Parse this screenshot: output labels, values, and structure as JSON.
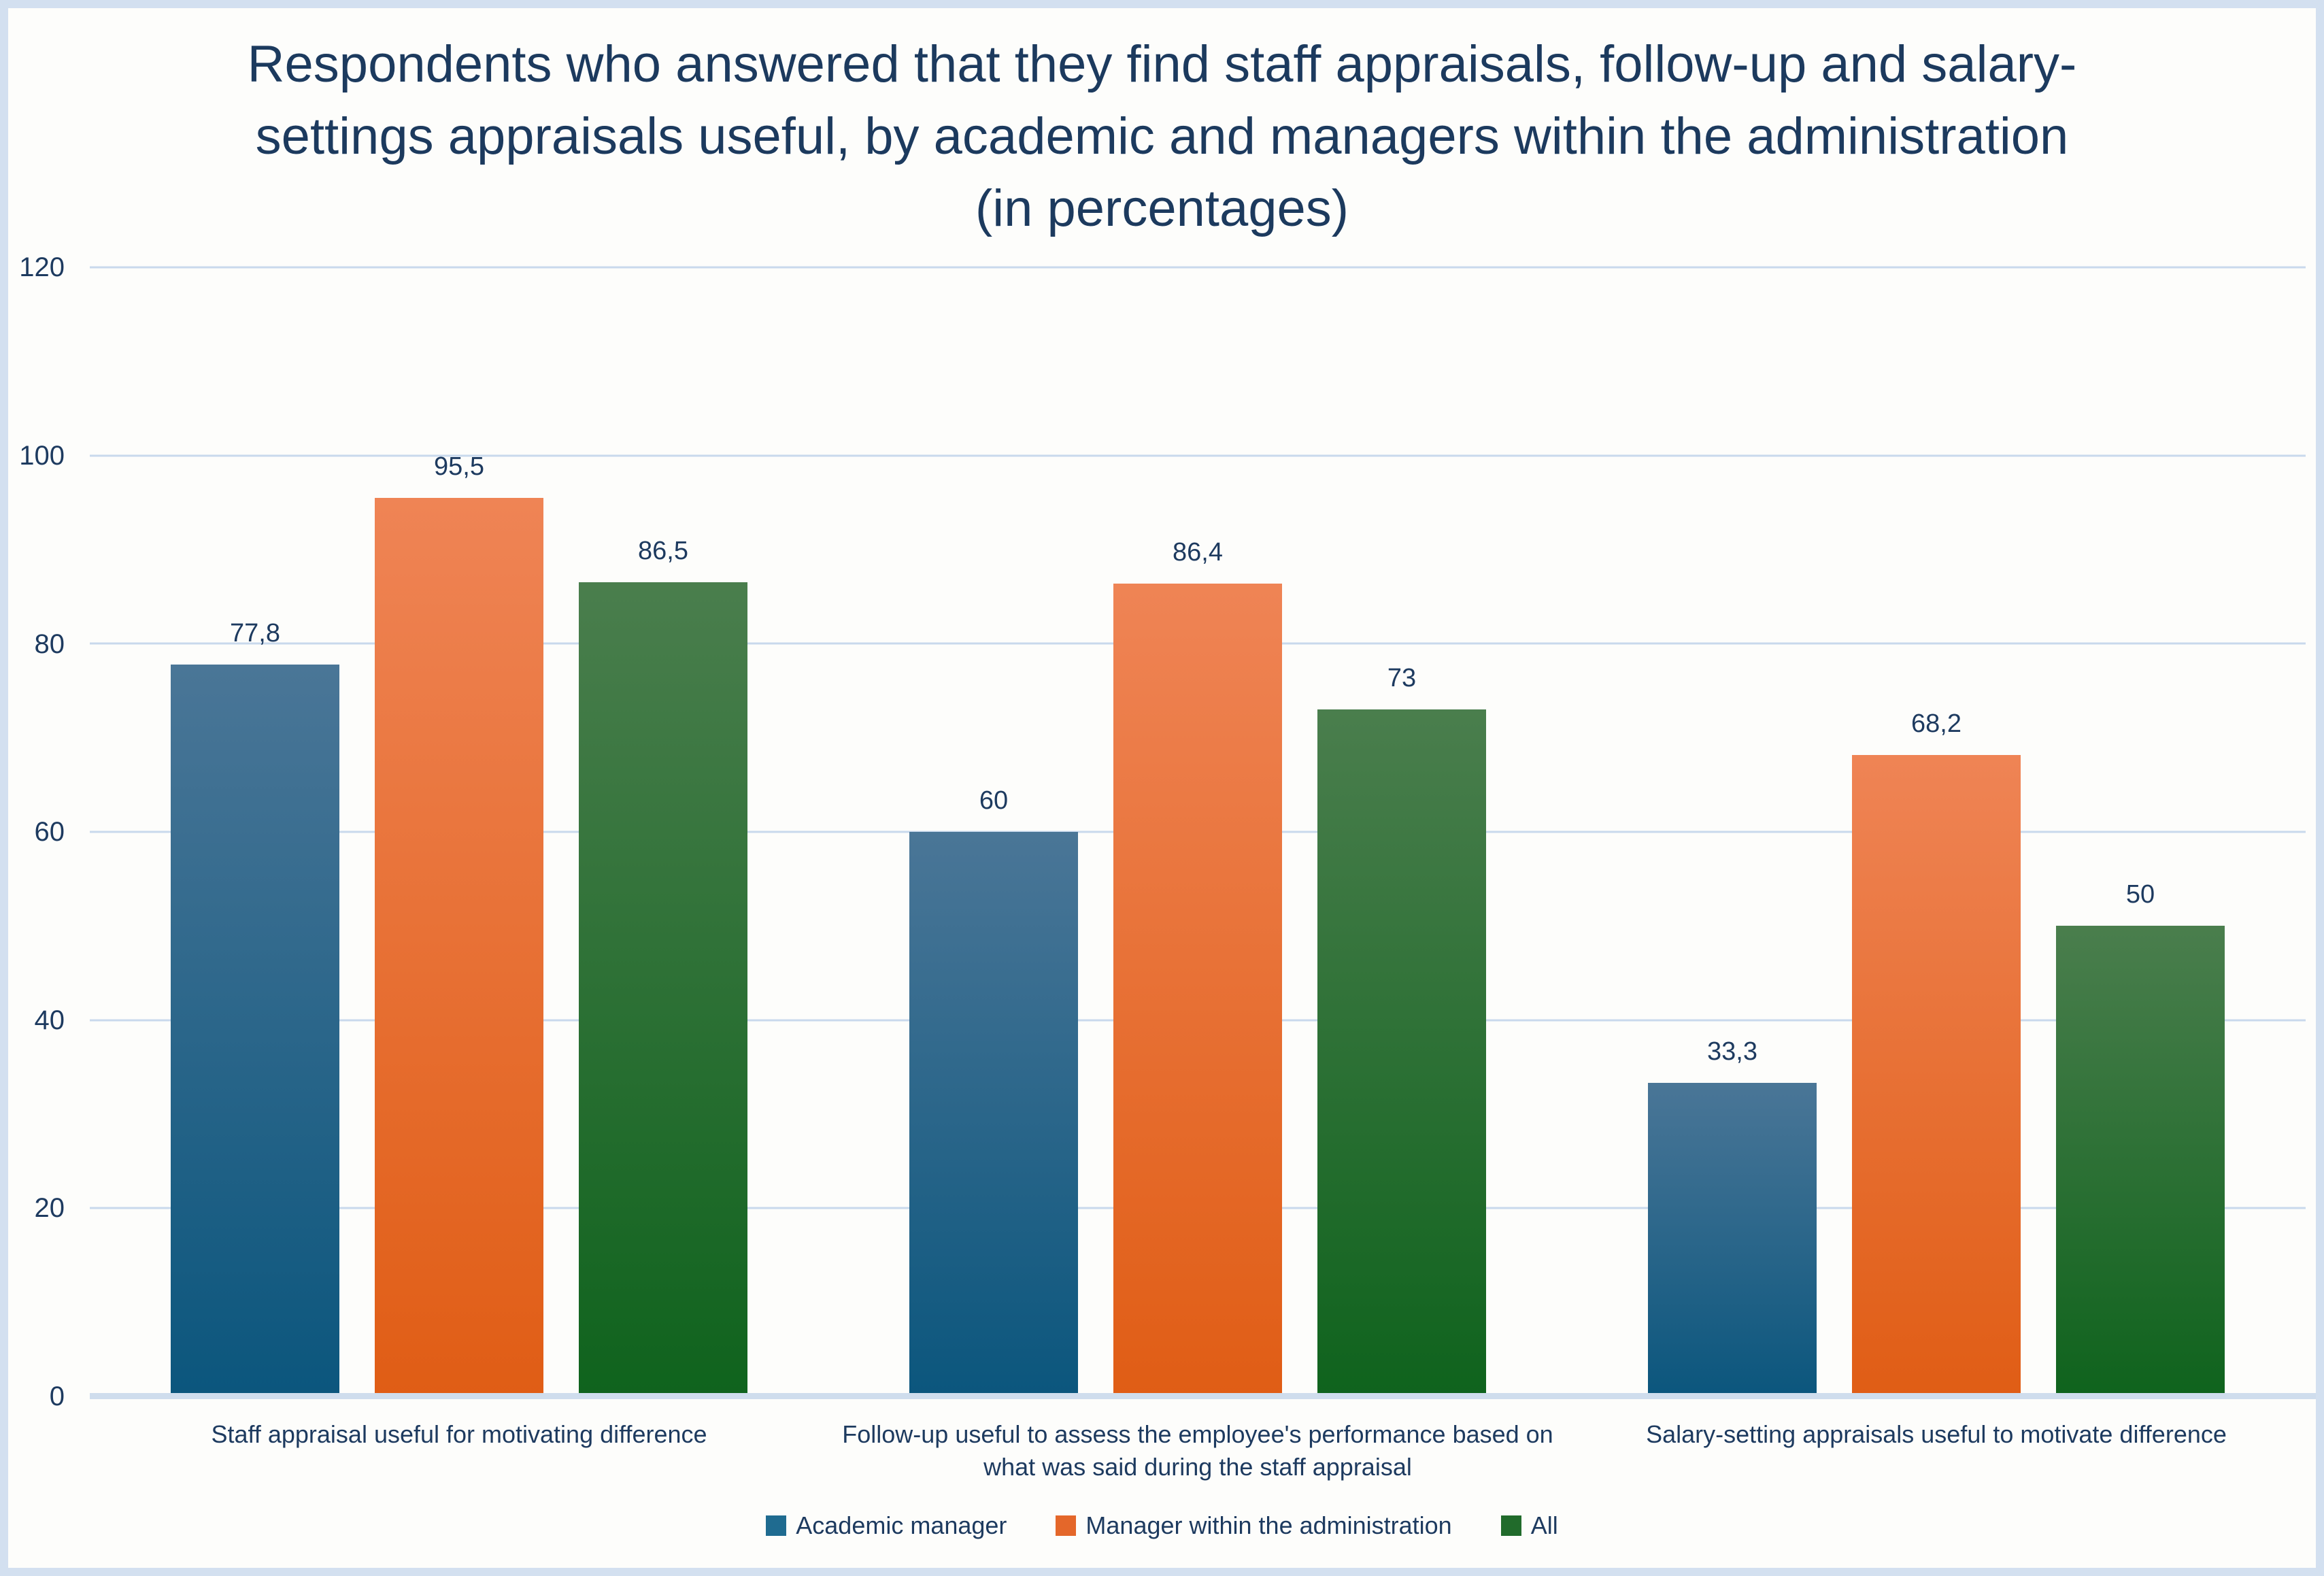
{
  "frame": {
    "border_color": "#d3e0f0",
    "background": "#fdfdfb",
    "text_color": "#1d3a5f",
    "gridline_color": "#c9d9ec",
    "axisline_color": "#cfdded"
  },
  "chart_data": {
    "type": "bar",
    "title": "Respondents who answered that they find staff appraisals, follow-up and salary-settings appraisals useful, by academic and managers within the administration (in percentages)",
    "title_lines": [
      "Respondents who answered that they find staff appraisals, follow-up and salary-",
      "settings appraisals useful, by academic and managers within the administration",
      "(in percentages)"
    ],
    "categories": [
      "Staff appraisal useful for motivating difference",
      "Follow-up useful to assess the employee's performance based on what was said during the staff appraisal",
      "Salary-setting appraisals useful to motivate difference"
    ],
    "series": [
      {
        "name": "Academic manager",
        "values": [
          77.8,
          60,
          33.3
        ],
        "labels": [
          "77,8",
          "60",
          "33,3"
        ],
        "color_top": "#4a7697",
        "color_bottom": "#0b567d",
        "swatch": "#1f6b90"
      },
      {
        "name": "Manager within the administration",
        "values": [
          95.5,
          86.4,
          68.2
        ],
        "labels": [
          "95,5",
          "86,4",
          "68,2"
        ],
        "color_top": "#ef8455",
        "color_bottom": "#e05d15",
        "swatch": "#e4672a"
      },
      {
        "name": "All",
        "values": [
          86.5,
          73,
          50
        ],
        "labels": [
          "86,5",
          "73",
          "50"
        ],
        "color_top": "#4a7e4d",
        "color_bottom": "#0f631d",
        "swatch": "#216b2b"
      }
    ],
    "ylim": [
      0,
      120
    ],
    "yticks": [
      "120",
      "100",
      "80",
      "60",
      "40",
      "20",
      "0"
    ],
    "grid": "horizontal gridlines every 20",
    "legend_position": "bottom"
  }
}
